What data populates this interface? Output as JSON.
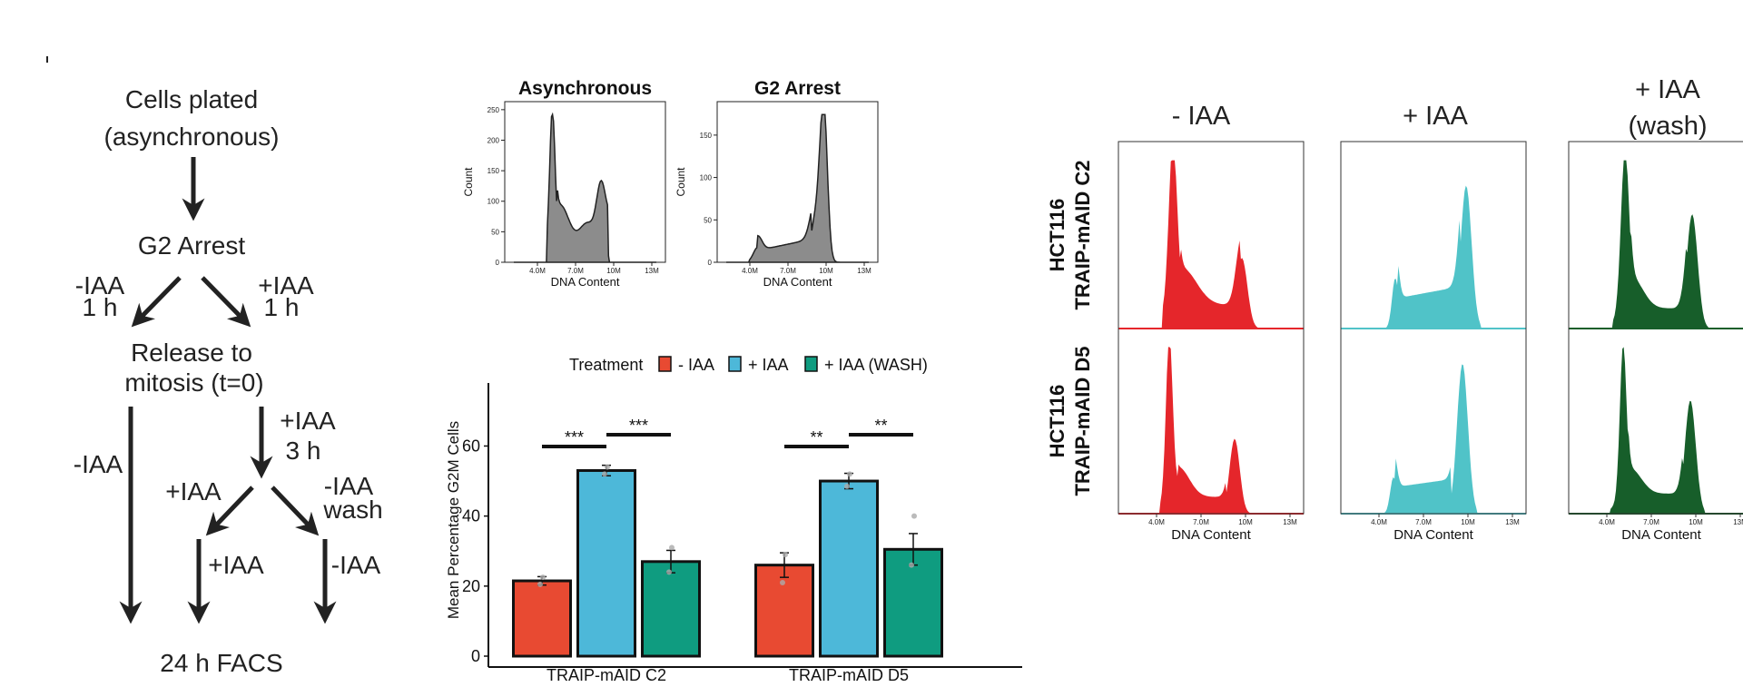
{
  "colors": {
    "minus": "#E84A32",
    "plus": "#4DB8D9",
    "wash": "#0F9C80",
    "hist_grey": "#8c8c8c",
    "facs_red": "#E5262B",
    "facs_cyan": "#50C3C8",
    "facs_green": "#175E2A",
    "ink": "#222222"
  },
  "flow": {
    "start": [
      "Cells plated",
      "(asynchronous)"
    ],
    "arrest": "G2 Arrest",
    "left_branch": [
      "-IAA",
      "1 h"
    ],
    "right_branch": [
      "+IAA",
      "1 h"
    ],
    "release": [
      "Release to",
      "mitosis (t=0)"
    ],
    "minus_iaa": "-IAA",
    "plus_iaa_3h": [
      "+IAA",
      "3 h"
    ],
    "plus_iaa": "+IAA",
    "minus_iaa_wash": [
      "-IAA",
      "wash"
    ],
    "plus_iaa_b": "+IAA",
    "minus_iaa_b": "-IAA",
    "end": "24 h FACS"
  },
  "histograms": [
    {
      "title": "Asynchronous",
      "ylabel": "Count",
      "xlabel": "DNA Content",
      "yticks": [
        "0",
        "50",
        "100",
        "150",
        "200",
        "250"
      ],
      "xticks": [
        "4.0M",
        "7.0M",
        "10M",
        "13M"
      ],
      "ymax": 250
    },
    {
      "title": "G2 Arrest",
      "ylabel": "Count",
      "xlabel": "DNA Content",
      "yticks": [
        "0",
        "50",
        "100",
        "150"
      ],
      "xticks": [
        "4.0M",
        "7.0M",
        "10M",
        "13M"
      ],
      "ymax": 180
    }
  ],
  "chart_data": {
    "type": "bar",
    "title": "",
    "xlabel": "",
    "ylabel": "Mean Percentage G2M Cells",
    "legend_title": "Treatment",
    "legend_position": "top",
    "categories": [
      "TRAIP-mAID C2",
      "TRAIP-mAID D5"
    ],
    "series": [
      {
        "name": "- IAA",
        "values": [
          21.5,
          26
        ],
        "errors": [
          1.2,
          3.5
        ],
        "points": [
          [
            22.5,
            20.5
          ],
          [
            29,
            21
          ]
        ]
      },
      {
        "name": "+ IAA",
        "values": [
          53,
          50
        ],
        "errors": [
          1.5,
          2.2
        ],
        "points": [
          [
            54,
            52
          ],
          [
            52,
            48.5
          ]
        ]
      },
      {
        "name": "+ IAA (WASH)",
        "values": [
          27,
          30.5
        ],
        "errors": [
          3.2,
          4.5
        ],
        "points": [
          [
            31,
            24
          ],
          [
            40,
            26
          ]
        ]
      }
    ],
    "yticks": [
      0,
      20,
      40,
      60
    ],
    "ylim": [
      0,
      78
    ],
    "significance": [
      {
        "category": 0,
        "pairs": [
          [
            0,
            1
          ],
          [
            1,
            2
          ]
        ],
        "labels": [
          "***",
          "***"
        ]
      },
      {
        "category": 1,
        "pairs": [
          [
            0,
            1
          ],
          [
            1,
            2
          ]
        ],
        "labels": [
          "**",
          "**"
        ]
      }
    ]
  },
  "facs": {
    "columns": [
      "- IAA",
      "+ IAA",
      "+ IAA",
      "(wash)"
    ],
    "rows": [
      [
        "HCT116",
        "TRAIP-mAID C2"
      ],
      [
        "HCT116",
        "TRAIP-mAID D5"
      ]
    ],
    "xticks": [
      "4.0M",
      "7.0M",
      "10M",
      "13M"
    ],
    "xlabel": "DNA Content"
  }
}
